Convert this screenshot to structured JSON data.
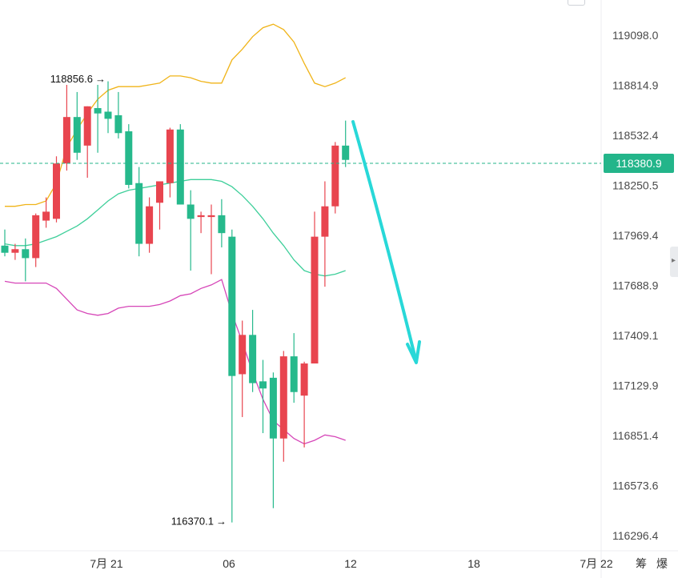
{
  "colors": {
    "up": "#e8454f",
    "down": "#26b98c",
    "upper_band": "#f0b419",
    "middle_band": "#3ecf9a",
    "lower_band": "#d646b8",
    "last_price": "#23b58a",
    "arrow": "#28d8d8"
  },
  "chart_data": {
    "type": "candlestick",
    "y_ticks": [
      "119098.0",
      "118814.9",
      "118532.4",
      "118250.5",
      "117969.4",
      "117688.9",
      "117409.1",
      "117129.9",
      "116851.4",
      "116573.6",
      "116296.4"
    ],
    "x_ticks": [
      "7月 21",
      "06",
      "12",
      "18",
      "7月 22"
    ],
    "extra_labels": [
      "筹",
      "爆"
    ],
    "last_price": 118380.9,
    "last_price_label": "118380.9",
    "high_annotation": {
      "label": "118856.6",
      "value": 118856.6
    },
    "low_annotation": {
      "label": "116370.1",
      "value": 116370.1
    },
    "candles": [
      {
        "o": 117920,
        "h": 118010,
        "l": 117860,
        "c": 117880
      },
      {
        "o": 117880,
        "h": 117930,
        "l": 117840,
        "c": 117900
      },
      {
        "o": 117900,
        "h": 117960,
        "l": 117720,
        "c": 117850
      },
      {
        "o": 117850,
        "h": 118100,
        "l": 117800,
        "c": 118090
      },
      {
        "o": 118060,
        "h": 118190,
        "l": 118020,
        "c": 118110
      },
      {
        "o": 118070,
        "h": 118420,
        "l": 118050,
        "c": 118380
      },
      {
        "o": 118380,
        "h": 118820,
        "l": 118340,
        "c": 118640
      },
      {
        "o": 118640,
        "h": 118780,
        "l": 118400,
        "c": 118440
      },
      {
        "o": 118480,
        "h": 118700,
        "l": 118300,
        "c": 118700
      },
      {
        "o": 118690,
        "h": 118820,
        "l": 118440,
        "c": 118660
      },
      {
        "o": 118670,
        "h": 118840,
        "l": 118550,
        "c": 118630
      },
      {
        "o": 118650,
        "h": 118780,
        "l": 118520,
        "c": 118550
      },
      {
        "o": 118560,
        "h": 118600,
        "l": 118240,
        "c": 118260
      },
      {
        "o": 118270,
        "h": 118360,
        "l": 117860,
        "c": 117930
      },
      {
        "o": 117930,
        "h": 118190,
        "l": 117880,
        "c": 118140
      },
      {
        "o": 118160,
        "h": 118260,
        "l": 118010,
        "c": 118280
      },
      {
        "o": 118270,
        "h": 118580,
        "l": 118190,
        "c": 118570
      },
      {
        "o": 118570,
        "h": 118600,
        "l": 118150,
        "c": 118150
      },
      {
        "o": 118150,
        "h": 118230,
        "l": 117780,
        "c": 118070
      },
      {
        "o": 118080,
        "h": 118110,
        "l": 117990,
        "c": 118090
      },
      {
        "o": 118080,
        "h": 118150,
        "l": 117760,
        "c": 118090
      },
      {
        "o": 118090,
        "h": 118180,
        "l": 117910,
        "c": 117990
      },
      {
        "o": 117970,
        "h": 118010,
        "l": 116370,
        "c": 117190
      },
      {
        "o": 117200,
        "h": 117500,
        "l": 116960,
        "c": 117420
      },
      {
        "o": 117420,
        "h": 117560,
        "l": 117100,
        "c": 117150
      },
      {
        "o": 117160,
        "h": 117280,
        "l": 116870,
        "c": 117120
      },
      {
        "o": 117180,
        "h": 117210,
        "l": 116450,
        "c": 116840
      },
      {
        "o": 116840,
        "h": 117330,
        "l": 116710,
        "c": 117300
      },
      {
        "o": 117300,
        "h": 117430,
        "l": 117040,
        "c": 117100
      },
      {
        "o": 117080,
        "h": 117270,
        "l": 116790,
        "c": 117260
      },
      {
        "o": 117260,
        "h": 118110,
        "l": 117260,
        "c": 117970
      },
      {
        "o": 117970,
        "h": 118280,
        "l": 117690,
        "c": 118140
      },
      {
        "o": 118140,
        "h": 118500,
        "l": 118100,
        "c": 118480
      },
      {
        "o": 118480,
        "h": 118620,
        "l": 118360,
        "c": 118400
      }
    ],
    "upper_band": [
      118140,
      118140,
      118150,
      118150,
      118170,
      118270,
      118470,
      118570,
      118660,
      118740,
      118790,
      118810,
      118810,
      118810,
      118820,
      118830,
      118870,
      118870,
      118860,
      118840,
      118830,
      118830,
      118960,
      119020,
      119090,
      119140,
      119160,
      119130,
      119060,
      118940,
      118830,
      118810,
      118830,
      118860
    ],
    "middle_band": [
      117930,
      117920,
      117920,
      117930,
      117950,
      117970,
      118000,
      118030,
      118070,
      118120,
      118170,
      118210,
      118230,
      118240,
      118250,
      118260,
      118270,
      118280,
      118290,
      118290,
      118290,
      118280,
      118250,
      118200,
      118140,
      118070,
      117990,
      117920,
      117840,
      117780,
      117760,
      117750,
      117760,
      117780
    ],
    "lower_band": [
      117720,
      117710,
      117710,
      117710,
      117710,
      117680,
      117620,
      117560,
      117540,
      117530,
      117540,
      117570,
      117580,
      117580,
      117580,
      117590,
      117610,
      117640,
      117650,
      117680,
      117700,
      117730,
      117540,
      117380,
      117210,
      117060,
      116940,
      116890,
      116840,
      116810,
      116830,
      116860,
      116850,
      116830
    ]
  }
}
